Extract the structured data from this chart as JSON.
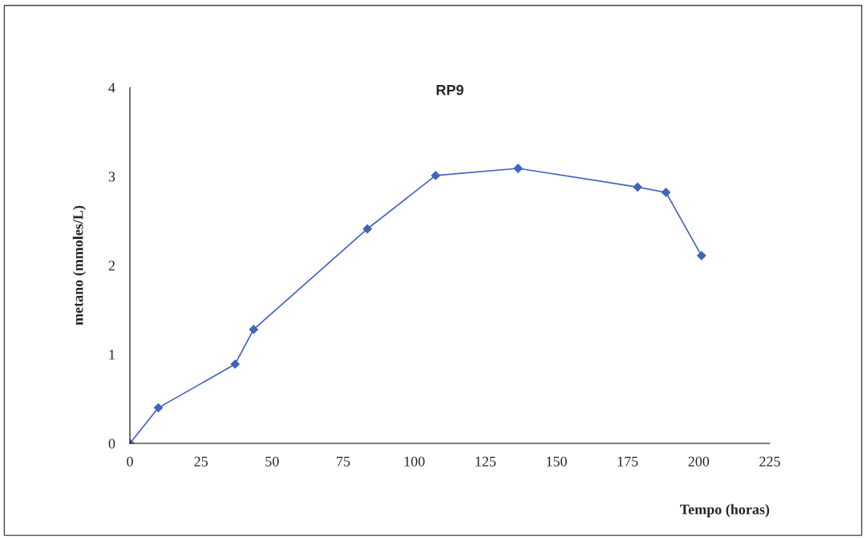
{
  "chart_data": {
    "type": "line",
    "title": "RP9",
    "xlabel": "Tempo (horas)",
    "ylabel": "metano (mmoles/L)",
    "x": [
      0,
      10,
      37,
      43.5,
      83.5,
      107.5,
      136.5,
      178.5,
      188.5,
      201
    ],
    "series": [
      {
        "color": "#3f64b8",
        "values": [
          0,
          0.4,
          0.89,
          1.28,
          2.41,
          3.01,
          3.09,
          2.88,
          2.82,
          2.11
        ]
      }
    ],
    "xlim": [
      0,
      225
    ],
    "xticks": [
      0,
      25,
      50,
      75,
      100,
      125,
      150,
      175,
      200,
      225
    ],
    "ylim": [
      0,
      4
    ],
    "yticks": [
      0,
      1,
      2,
      3,
      4
    ],
    "grid": false,
    "legend": false,
    "marker": "diamond",
    "line_style": "solid"
  }
}
